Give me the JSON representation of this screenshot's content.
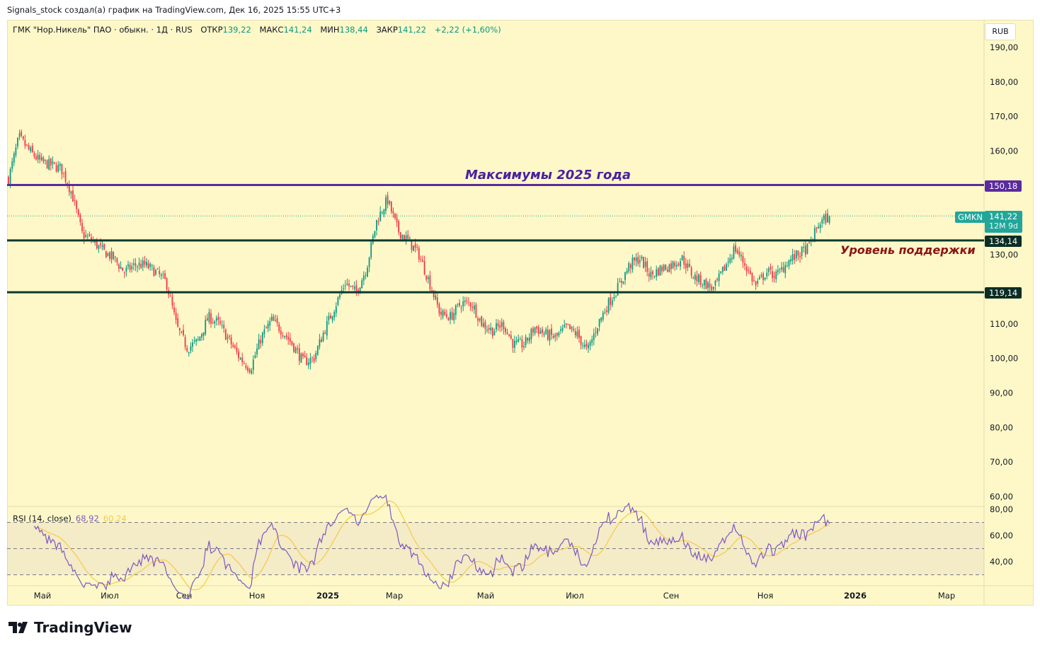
{
  "caption": "Signals_stock создал(а) график на TradingView.com, Дек 16, 2025 15:55 UTC+3",
  "legend": {
    "symbol": "ГМК \"Нор.Никель\" ПАО · обыкн. · 1Д · RUS",
    "open_label": "ОТКР",
    "open": "139,22",
    "high_label": "МАКС",
    "high": "141,24",
    "low_label": "МИН",
    "low": "138,44",
    "close_label": "ЗАКР",
    "close": "141,22",
    "change": "+2,22 (+1,60%)"
  },
  "currency": "RUB",
  "annotations": {
    "max_label": "Максимумы 2025 года",
    "support_label": "Уровень поддержки"
  },
  "price_tags": {
    "max_level": "150,18",
    "ticker": "GMKN",
    "last_price": "141,22",
    "countdown": "12M 9d",
    "support_high": "134,14",
    "support_low": "119,14"
  },
  "rsi": {
    "label": "RSI (14, close)",
    "value": "68,92",
    "ma_value": "60,24",
    "axis": [
      "80,00",
      "60,00",
      "40,00"
    ]
  },
  "logo": "TradingView",
  "colors": {
    "up": "#089981",
    "down": "#f23645",
    "max_line": "#5b2a9e",
    "support_line": "#0b3a2c",
    "rsi": "#7e57c2",
    "rsi_ma": "#f7c948",
    "background": "#fef8c8"
  },
  "chart_data": {
    "type": "candlestick",
    "title": "ГМК \"Нор.Никель\" ПАО · 1Д",
    "ylim": [
      55,
      195
    ],
    "y_ticks": [
      "190,00",
      "180,00",
      "170,00",
      "160,00",
      "130,00",
      "110,00",
      "100,00",
      "90,00",
      "80,00",
      "70,00",
      "60,00"
    ],
    "x_ticks": [
      "Май",
      "Июл",
      "Сен",
      "Ноя",
      "2025",
      "Мар",
      "Май",
      "Июл",
      "Сен",
      "Ноя",
      "2026",
      "Мар"
    ],
    "horizontal_levels": [
      150.18,
      134.14,
      119.14
    ],
    "last_close": 141.22,
    "sampled_closes": [
      152,
      164,
      160,
      157,
      156,
      155,
      148,
      136,
      134,
      131,
      129,
      125,
      127,
      127,
      125,
      122,
      109,
      103,
      105,
      112,
      110,
      105,
      100,
      97,
      106,
      111,
      108,
      104,
      99,
      100,
      108,
      115,
      122,
      119,
      126,
      140,
      146,
      137,
      134,
      130,
      122,
      113,
      112,
      116,
      116,
      110,
      108,
      110,
      104,
      104,
      109,
      107,
      106,
      109,
      107,
      102,
      110,
      116,
      121,
      127,
      129,
      124,
      126,
      127,
      129,
      124,
      122,
      120,
      126,
      132,
      127,
      121,
      125,
      124,
      128,
      130,
      132,
      139,
      141.22
    ]
  }
}
